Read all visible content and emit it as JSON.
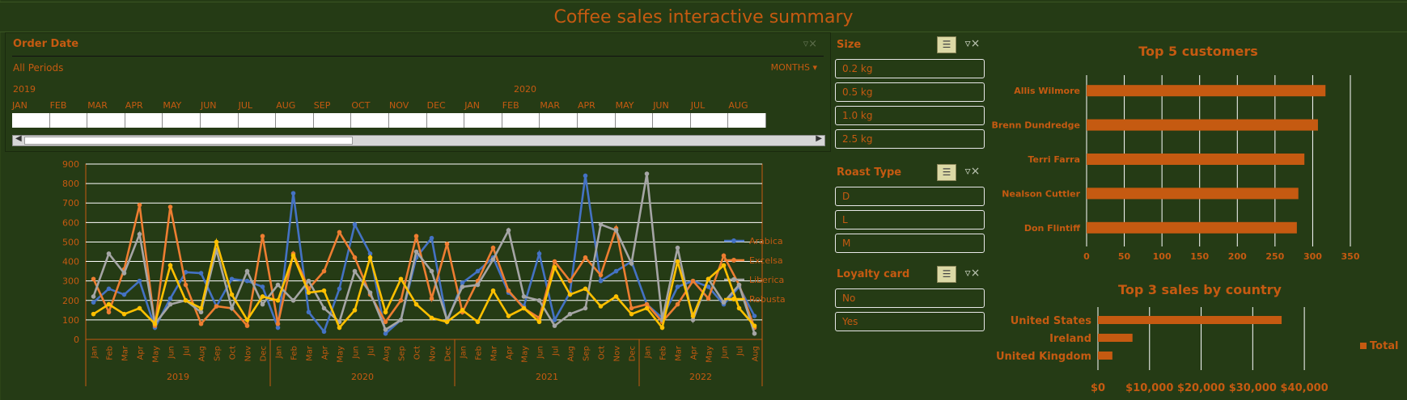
{
  "title": "Coffee sales interactive summary",
  "colors": {
    "background": "#253b15",
    "accent": "#c55a11",
    "arabica": "#4472c4",
    "excelsa": "#ed7d31",
    "liberica": "#a5a5a5",
    "robusta": "#ffc000"
  },
  "timeline": {
    "header": "Order Date",
    "period": "All Periods",
    "level": "MONTHS",
    "years": [
      "2019",
      "2020"
    ],
    "months": [
      "JAN",
      "FEB",
      "MAR",
      "APR",
      "MAY",
      "JUN",
      "JUL",
      "AUG",
      "SEP",
      "OCT",
      "NOV",
      "DEC",
      "JAN",
      "FEB",
      "MAR",
      "APR",
      "MAY",
      "JUN",
      "JUL",
      "AUG"
    ]
  },
  "slicers": {
    "size": {
      "title": "Size",
      "items": [
        "0.2 kg",
        "0.5 kg",
        "1.0 kg",
        "2.5 kg"
      ]
    },
    "roast": {
      "title": "Roast Type",
      "items": [
        "D",
        "L",
        "M"
      ]
    },
    "loyalty": {
      "title": "Loyalty card",
      "items": [
        "No",
        "Yes"
      ]
    }
  },
  "icons": {
    "multi_select": "multi-select-icon",
    "clear_filter": "clear-filter-icon"
  },
  "chart_data": [
    {
      "type": "line",
      "ylim": [
        0,
        900
      ],
      "yticks": [
        0,
        100,
        200,
        300,
        400,
        500,
        600,
        700,
        800,
        900
      ],
      "x": [
        "Jan",
        "Feb",
        "Mar",
        "Apr",
        "May",
        "Jun",
        "Jul",
        "Aug",
        "Sep",
        "Oct",
        "Nov",
        "Dec",
        "Jan",
        "Feb",
        "Mar",
        "Apr",
        "May",
        "Jun",
        "Jul",
        "Aug",
        "Sep",
        "Oct",
        "Nov",
        "Dec",
        "Jan",
        "Feb",
        "Mar",
        "Apr",
        "May",
        "Jun",
        "Jul",
        "Aug",
        "Sep",
        "Oct",
        "Nov",
        "Dec",
        "Jan",
        "Feb",
        "Mar",
        "Apr",
        "May",
        "Jun",
        "Jul",
        "Aug"
      ],
      "years": [
        {
          "label": "2019",
          "start": 0,
          "end": 11
        },
        {
          "label": "2020",
          "start": 12,
          "end": 23
        },
        {
          "label": "2021",
          "start": 24,
          "end": 35
        },
        {
          "label": "2022",
          "start": 36,
          "end": 43
        }
      ],
      "series": [
        {
          "name": "Arabica",
          "color": "#4472c4",
          "values": [
            190,
            260,
            230,
            300,
            60,
            210,
            345,
            340,
            170,
            310,
            300,
            270,
            60,
            750,
            140,
            40,
            260,
            590,
            440,
            30,
            100,
            420,
            520,
            90,
            290,
            350,
            420,
            240,
            170,
            440,
            100,
            240,
            840,
            300,
            350,
            400,
            180,
            110,
            270,
            300,
            270,
            180,
            270,
            120
          ]
        },
        {
          "name": "Excelsa",
          "color": "#ed7d31",
          "values": [
            310,
            140,
            360,
            690,
            70,
            680,
            280,
            80,
            170,
            160,
            70,
            530,
            80,
            440,
            260,
            350,
            550,
            420,
            230,
            90,
            200,
            530,
            210,
            490,
            140,
            300,
            470,
            250,
            160,
            110,
            400,
            300,
            420,
            330,
            570,
            160,
            180,
            90,
            180,
            300,
            210,
            430,
            280,
            60
          ]
        },
        {
          "name": "Liberica",
          "color": "#a5a5a5",
          "values": [
            220,
            440,
            340,
            540,
            80,
            180,
            200,
            140,
            460,
            160,
            350,
            180,
            280,
            200,
            300,
            160,
            90,
            350,
            240,
            50,
            100,
            450,
            350,
            100,
            270,
            280,
            410,
            560,
            220,
            200,
            70,
            130,
            160,
            590,
            560,
            390,
            850,
            100,
            470,
            100,
            310,
            190,
            280,
            30
          ]
        },
        {
          "name": "Robusta",
          "color": "#ffc000",
          "values": [
            130,
            180,
            130,
            160,
            80,
            380,
            200,
            160,
            500,
            230,
            100,
            220,
            200,
            430,
            240,
            250,
            60,
            150,
            420,
            140,
            310,
            180,
            110,
            90,
            150,
            90,
            250,
            120,
            160,
            90,
            370,
            230,
            260,
            170,
            220,
            130,
            160,
            60,
            400,
            120,
            310,
            380,
            160,
            70
          ]
        }
      ]
    },
    {
      "type": "bar",
      "title": "Top 5 customers",
      "orientation": "horizontal",
      "categories": [
        "Allis Wilmore",
        "Brenn Dundredge",
        "Terri Farra",
        "Nealson Cuttler",
        "Don Flintiff"
      ],
      "values": [
        317,
        307,
        289,
        281,
        279
      ],
      "xlim": [
        0,
        350
      ],
      "xticks": [
        0,
        50,
        100,
        150,
        200,
        250,
        300,
        350
      ]
    },
    {
      "type": "bar",
      "title": "Top 3 sales by country",
      "orientation": "horizontal",
      "categories": [
        "United States",
        "Ireland",
        "United Kingdom"
      ],
      "values": [
        35600,
        6700,
        2800
      ],
      "xlim": [
        0,
        45000
      ],
      "xticks": [
        0,
        10000,
        20000,
        30000,
        40000
      ],
      "xtick_labels": [
        "$0",
        "$10,000",
        "$20,000",
        "$30,000",
        "$40,000"
      ],
      "legend": "Total"
    }
  ]
}
